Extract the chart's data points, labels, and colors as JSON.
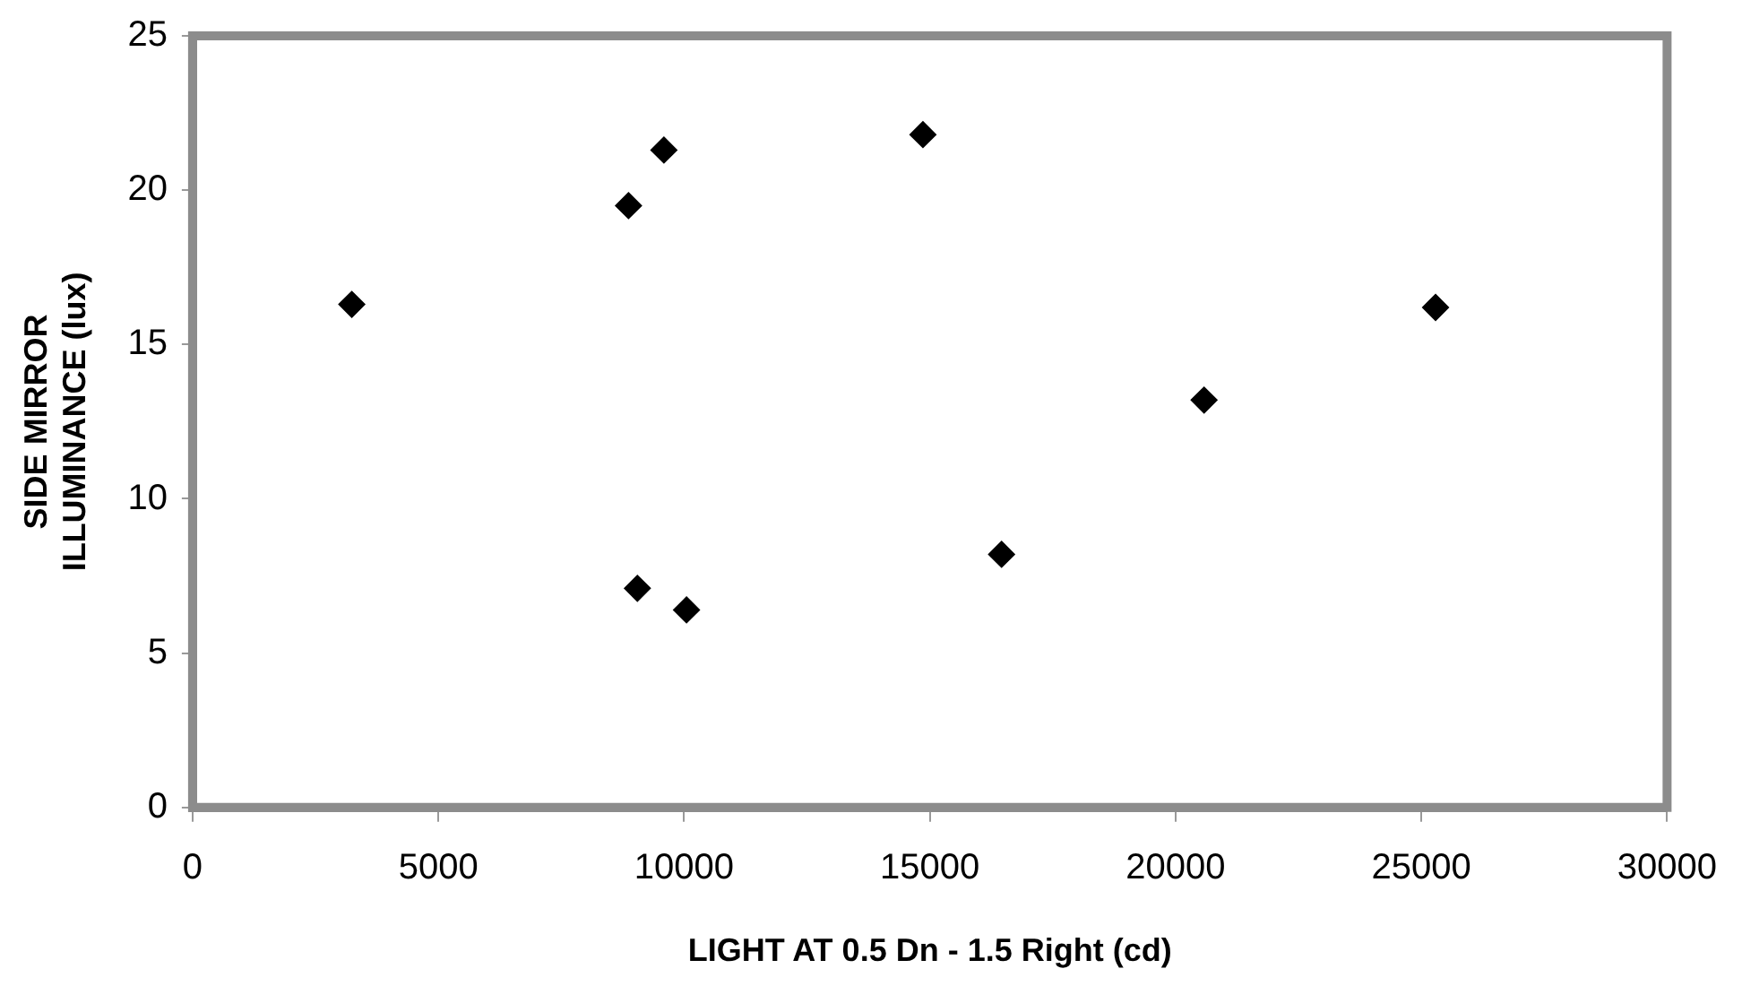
{
  "chart_data": {
    "type": "scatter",
    "xlabel": "LIGHT AT 0.5 Dn - 1.5 Right (cd)",
    "ylabel": "SIDE MIRROR\nILLUMINANCE (lux)",
    "x": [
      3240,
      8870,
      9590,
      14860,
      9050,
      10050,
      16460,
      20580,
      25290
    ],
    "series": [
      {
        "color": "#000000",
        "values": [
          16.3,
          19.5,
          21.3,
          21.8,
          7.1,
          6.4,
          8.2,
          13.2,
          16.2
        ]
      }
    ],
    "xlim": [
      0,
      30000
    ],
    "xticks": [
      0,
      5000,
      10000,
      15000,
      20000,
      25000,
      30000
    ],
    "ylim": [
      0,
      25
    ],
    "yticks": [
      0,
      5,
      10,
      15,
      20,
      25
    ],
    "grid": false,
    "legend": false,
    "marker": "diamond"
  }
}
